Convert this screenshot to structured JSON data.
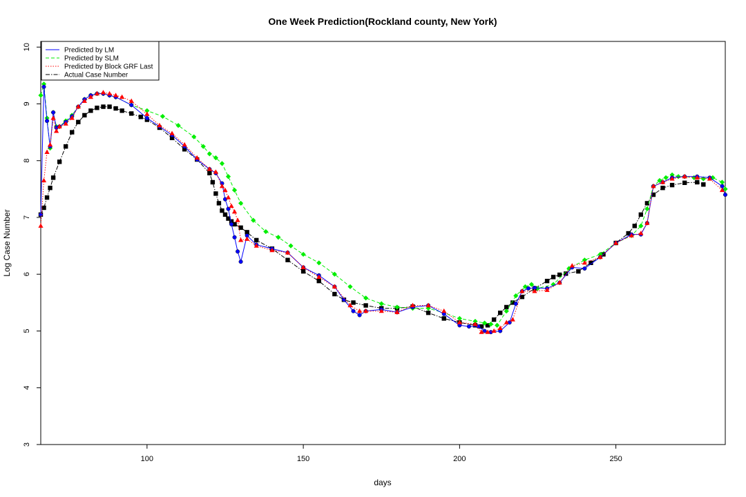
{
  "chart_data": {
    "type": "scatter",
    "title": "One Week Prediction(Rockland county, New York)",
    "xlabel": "days",
    "ylabel": "Log Case Number",
    "xlim": [
      66,
      285
    ],
    "ylim": [
      3,
      10.1
    ],
    "xticks": [
      100,
      150,
      200,
      250
    ],
    "yticks": [
      3,
      4,
      5,
      6,
      7,
      8,
      9,
      10
    ],
    "grid": false,
    "legend_position": "top-left",
    "series": [
      {
        "name": "Actual Case Number",
        "color": "#000000",
        "marker": "square",
        "linestyle": "dashdot",
        "x": [
          66,
          67,
          68,
          69,
          70,
          72,
          74,
          76,
          78,
          80,
          82,
          84,
          86,
          88,
          90,
          92,
          95,
          98,
          100,
          104,
          108,
          112,
          116,
          120,
          121,
          122,
          123,
          124,
          125,
          126,
          127,
          128,
          130,
          132,
          135,
          140,
          145,
          150,
          155,
          160,
          163,
          166,
          170,
          175,
          180,
          185,
          190,
          195,
          200,
          205,
          207,
          209,
          211,
          213,
          215,
          217,
          220,
          224,
          228,
          230,
          232,
          234,
          238,
          242,
          246,
          250,
          254,
          256,
          258,
          260,
          262,
          265,
          268,
          272,
          276,
          278
        ],
        "y": [
          7.05,
          7.17,
          7.35,
          7.52,
          7.7,
          7.98,
          8.25,
          8.5,
          8.68,
          8.8,
          8.88,
          8.93,
          8.95,
          8.95,
          8.92,
          8.88,
          8.83,
          8.77,
          8.72,
          8.58,
          8.4,
          8.2,
          8.02,
          7.78,
          7.62,
          7.42,
          7.25,
          7.12,
          7.05,
          6.98,
          6.93,
          6.88,
          6.82,
          6.74,
          6.6,
          6.45,
          6.25,
          6.05,
          5.88,
          5.65,
          5.55,
          5.5,
          5.45,
          5.4,
          5.4,
          5.43,
          5.32,
          5.22,
          5.15,
          5.1,
          5.08,
          5.1,
          5.2,
          5.32,
          5.42,
          5.5,
          5.6,
          5.75,
          5.88,
          5.95,
          5.99,
          6.01,
          6.05,
          6.2,
          6.35,
          6.55,
          6.72,
          6.85,
          7.05,
          7.25,
          7.4,
          7.52,
          7.57,
          7.61,
          7.62,
          7.58
        ]
      },
      {
        "name": "Predicted by SLM",
        "color": "#00ee00",
        "marker": "diamond",
        "linestyle": "dashed",
        "x": [
          66,
          67,
          68,
          69,
          70,
          71,
          72,
          74,
          76,
          78,
          80,
          82,
          84,
          86,
          88,
          90,
          95,
          100,
          105,
          110,
          115,
          118,
          120,
          122,
          124,
          126,
          128,
          130,
          134,
          138,
          142,
          146,
          150,
          155,
          160,
          165,
          170,
          175,
          180,
          185,
          190,
          195,
          200,
          205,
          208,
          210,
          212,
          215,
          218,
          221,
          223,
          225,
          230,
          235,
          240,
          245,
          250,
          255,
          258,
          260,
          262,
          264,
          266,
          268,
          270,
          272,
          275,
          278,
          281,
          284,
          285
        ],
        "y": [
          9.15,
          9.35,
          8.75,
          8.22,
          8.85,
          8.6,
          8.6,
          8.7,
          8.8,
          8.95,
          9.08,
          9.15,
          9.18,
          9.18,
          9.15,
          9.12,
          8.98,
          8.88,
          8.78,
          8.62,
          8.42,
          8.25,
          8.12,
          8.05,
          7.95,
          7.72,
          7.48,
          7.25,
          6.95,
          6.75,
          6.65,
          6.5,
          6.35,
          6.2,
          6.0,
          5.78,
          5.58,
          5.48,
          5.42,
          5.4,
          5.4,
          5.32,
          5.22,
          5.17,
          5.14,
          5.12,
          5.1,
          5.35,
          5.62,
          5.78,
          5.82,
          5.75,
          5.82,
          6.1,
          6.25,
          6.35,
          6.55,
          6.68,
          6.85,
          7.15,
          7.55,
          7.65,
          7.7,
          7.75,
          7.72,
          7.72,
          7.7,
          7.68,
          7.7,
          7.62,
          7.5
        ]
      },
      {
        "name": "Predicted by LM",
        "color": "#0000ff",
        "marker": "circle",
        "linestyle": "solid",
        "x": [
          66,
          67,
          68,
          69,
          70,
          71,
          72,
          74,
          76,
          78,
          80,
          82,
          84,
          86,
          88,
          90,
          95,
          100,
          104,
          108,
          112,
          116,
          120,
          122,
          124,
          125,
          126,
          127,
          128,
          129,
          130,
          132,
          135,
          140,
          145,
          150,
          155,
          160,
          163,
          166,
          168,
          170,
          175,
          180,
          185,
          190,
          195,
          200,
          203,
          206,
          208,
          210,
          213,
          216,
          218,
          220,
          222,
          224,
          228,
          232,
          236,
          240,
          245,
          250,
          255,
          258,
          260,
          262,
          265,
          268,
          272,
          276,
          280,
          284,
          285
        ],
        "y": [
          7.05,
          9.3,
          8.7,
          8.25,
          8.85,
          8.58,
          8.6,
          8.68,
          8.78,
          8.95,
          9.08,
          9.15,
          9.18,
          9.18,
          9.15,
          9.12,
          8.98,
          8.75,
          8.6,
          8.45,
          8.25,
          8.02,
          7.85,
          7.78,
          7.6,
          7.32,
          7.15,
          6.88,
          6.65,
          6.4,
          6.22,
          6.68,
          6.52,
          6.45,
          6.38,
          6.12,
          5.98,
          5.78,
          5.55,
          5.35,
          5.28,
          5.35,
          5.38,
          5.33,
          5.42,
          5.45,
          5.3,
          5.1,
          5.08,
          5.08,
          5.0,
          4.98,
          5.0,
          5.15,
          5.48,
          5.7,
          5.75,
          5.76,
          5.75,
          5.85,
          6.12,
          6.1,
          6.3,
          6.55,
          6.7,
          6.7,
          6.9,
          7.55,
          7.62,
          7.7,
          7.72,
          7.72,
          7.7,
          7.55,
          7.4
        ]
      },
      {
        "name": "Predicted by Block GRF Last",
        "color": "#ff0000",
        "marker": "triangle",
        "linestyle": "dotted",
        "x": [
          66,
          67,
          68,
          69,
          70,
          71,
          72,
          74,
          76,
          78,
          80,
          82,
          84,
          86,
          88,
          90,
          92,
          95,
          100,
          104,
          108,
          112,
          116,
          120,
          122,
          124,
          125,
          126,
          127,
          128,
          129,
          130,
          132,
          135,
          140,
          145,
          150,
          155,
          160,
          165,
          168,
          170,
          175,
          180,
          185,
          190,
          195,
          200,
          205,
          207,
          209,
          211,
          213,
          215,
          217,
          220,
          224,
          228,
          232,
          236,
          240,
          245,
          250,
          255,
          258,
          260,
          262,
          265,
          268,
          272,
          276,
          280,
          284
        ],
        "y": [
          6.85,
          7.65,
          8.15,
          8.28,
          8.75,
          8.52,
          8.6,
          8.65,
          8.75,
          8.95,
          9.05,
          9.12,
          9.18,
          9.2,
          9.18,
          9.15,
          9.12,
          9.05,
          8.82,
          8.62,
          8.48,
          8.28,
          8.05,
          7.85,
          7.8,
          7.55,
          7.48,
          7.35,
          7.2,
          7.1,
          6.95,
          6.6,
          6.62,
          6.5,
          6.42,
          6.38,
          6.12,
          5.95,
          5.78,
          5.45,
          5.35,
          5.35,
          5.35,
          5.33,
          5.45,
          5.45,
          5.35,
          5.15,
          5.12,
          4.98,
          4.98,
          5.0,
          5.05,
          5.15,
          5.2,
          5.7,
          5.7,
          5.72,
          5.85,
          6.15,
          6.2,
          6.3,
          6.55,
          6.68,
          6.72,
          6.9,
          7.55,
          7.62,
          7.68,
          7.72,
          7.7,
          7.68,
          7.48
        ]
      }
    ]
  }
}
